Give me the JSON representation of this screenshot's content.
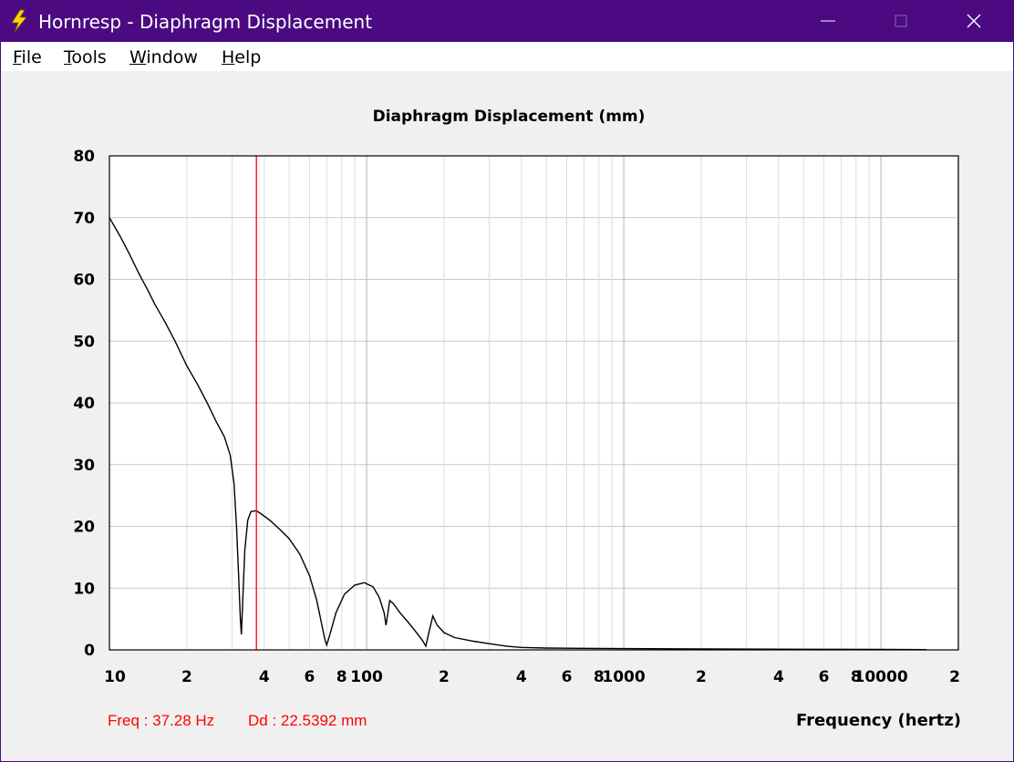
{
  "window": {
    "title": "Hornresp - Diaphragm Displacement",
    "app_icon": "lightning-bolt-icon",
    "accent": "#4b0a82"
  },
  "menu": [
    "File",
    "Tools",
    "Window",
    "Help"
  ],
  "readout": {
    "freq": "Freq : 37.28 Hz",
    "dd": "Dd : 22.5392 mm"
  },
  "chart_data": {
    "type": "line",
    "title": "Diaphragm Displacement (mm)",
    "xlabel": "Frequency (hertz)",
    "ylabel": "",
    "x_scale": "log",
    "xlim": [
      10,
      20000
    ],
    "ylim": [
      0,
      80
    ],
    "yticks": [
      0,
      10,
      20,
      30,
      40,
      50,
      60,
      70,
      80
    ],
    "xtick_labels": [
      {
        "x": 10,
        "label": "10"
      },
      {
        "x": 20,
        "label": "2"
      },
      {
        "x": 40,
        "label": "4"
      },
      {
        "x": 60,
        "label": "6"
      },
      {
        "x": 80,
        "label": "8"
      },
      {
        "x": 100,
        "label": "100"
      },
      {
        "x": 200,
        "label": "2"
      },
      {
        "x": 400,
        "label": "4"
      },
      {
        "x": 600,
        "label": "6"
      },
      {
        "x": 800,
        "label": "8"
      },
      {
        "x": 1000,
        "label": "1000"
      },
      {
        "x": 2000,
        "label": "2"
      },
      {
        "x": 4000,
        "label": "4"
      },
      {
        "x": 6000,
        "label": "6"
      },
      {
        "x": 8000,
        "label": "8"
      },
      {
        "x": 10000,
        "label": "10000"
      },
      {
        "x": 20000,
        "label": "2"
      }
    ],
    "grid": true,
    "cursor": {
      "x": 37.28,
      "color": "#ff0000"
    },
    "series": [
      {
        "color": "#000000",
        "points": [
          [
            10,
            70
          ],
          [
            11,
            67
          ],
          [
            12,
            64
          ],
          [
            13,
            61
          ],
          [
            14,
            58.5
          ],
          [
            15,
            56
          ],
          [
            16.5,
            53
          ],
          [
            18,
            50
          ],
          [
            20,
            46
          ],
          [
            22,
            43
          ],
          [
            24,
            40
          ],
          [
            26,
            37
          ],
          [
            28,
            34.5
          ],
          [
            29.5,
            31.5
          ],
          [
            30.5,
            27
          ],
          [
            31.2,
            20
          ],
          [
            31.8,
            12
          ],
          [
            32.3,
            5
          ],
          [
            32.6,
            2.5
          ],
          [
            33,
            8
          ],
          [
            33.6,
            16
          ],
          [
            34.5,
            21
          ],
          [
            35.5,
            22.4
          ],
          [
            37.28,
            22.54
          ],
          [
            39,
            22
          ],
          [
            42,
            21
          ],
          [
            46,
            19.5
          ],
          [
            50,
            18
          ],
          [
            55,
            15.5
          ],
          [
            60,
            12
          ],
          [
            64,
            8
          ],
          [
            67,
            4
          ],
          [
            69,
            1.5
          ],
          [
            70,
            0.8
          ],
          [
            72,
            2.5
          ],
          [
            76,
            6
          ],
          [
            82,
            9
          ],
          [
            90,
            10.5
          ],
          [
            98,
            10.9
          ],
          [
            106,
            10.2
          ],
          [
            112,
            8.5
          ],
          [
            117,
            6
          ],
          [
            119,
            4
          ],
          [
            121,
            6
          ],
          [
            123,
            8
          ],
          [
            127,
            7.5
          ],
          [
            135,
            6
          ],
          [
            145,
            4.5
          ],
          [
            155,
            3
          ],
          [
            165,
            1.5
          ],
          [
            170,
            0.6
          ],
          [
            175,
            3
          ],
          [
            181,
            5.5
          ],
          [
            188,
            4
          ],
          [
            200,
            2.8
          ],
          [
            220,
            2
          ],
          [
            260,
            1.4
          ],
          [
            300,
            1
          ],
          [
            350,
            0.6
          ],
          [
            400,
            0.4
          ],
          [
            500,
            0.3
          ],
          [
            700,
            0.25
          ],
          [
            1000,
            0.2
          ],
          [
            2000,
            0.15
          ],
          [
            5000,
            0.1
          ],
          [
            10000,
            0.08
          ],
          [
            15000,
            0.05
          ]
        ]
      }
    ]
  }
}
